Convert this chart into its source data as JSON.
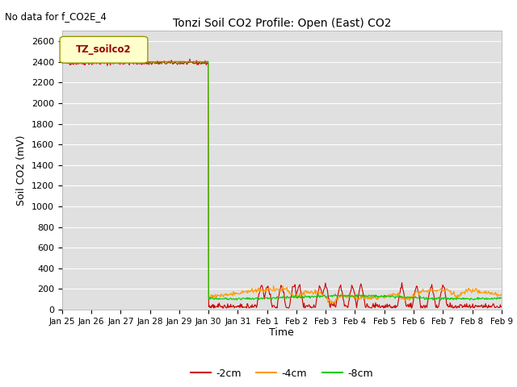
{
  "title": "Tonzi Soil CO2 Profile: Open (East) CO2",
  "ylabel": "Soil CO2 (mV)",
  "xlabel": "Time",
  "no_data_text": "No data for f_CO2E_4",
  "legend_box_label": "TZ_soilco2",
  "ylim": [
    0,
    2700
  ],
  "yticks": [
    0,
    200,
    400,
    600,
    800,
    1000,
    1200,
    1400,
    1600,
    1800,
    2000,
    2200,
    2400,
    2600
  ],
  "xtick_labels": [
    "Jan 25",
    "Jan 26",
    "Jan 27",
    "Jan 28",
    "Jan 29",
    "Jan 30",
    "Jan 31",
    "Feb 1",
    "Feb 2",
    "Feb 3",
    "Feb 4",
    "Feb 5",
    "Feb 6",
    "Feb 7",
    "Feb 8",
    "Feb 9"
  ],
  "colors": {
    "neg2cm": "#cc0000",
    "neg4cm": "#ff9900",
    "neg8cm": "#00cc00"
  },
  "background_color": "#e0e0e0",
  "legend_labels": [
    "-2cm",
    "-4cm",
    "-8cm"
  ]
}
